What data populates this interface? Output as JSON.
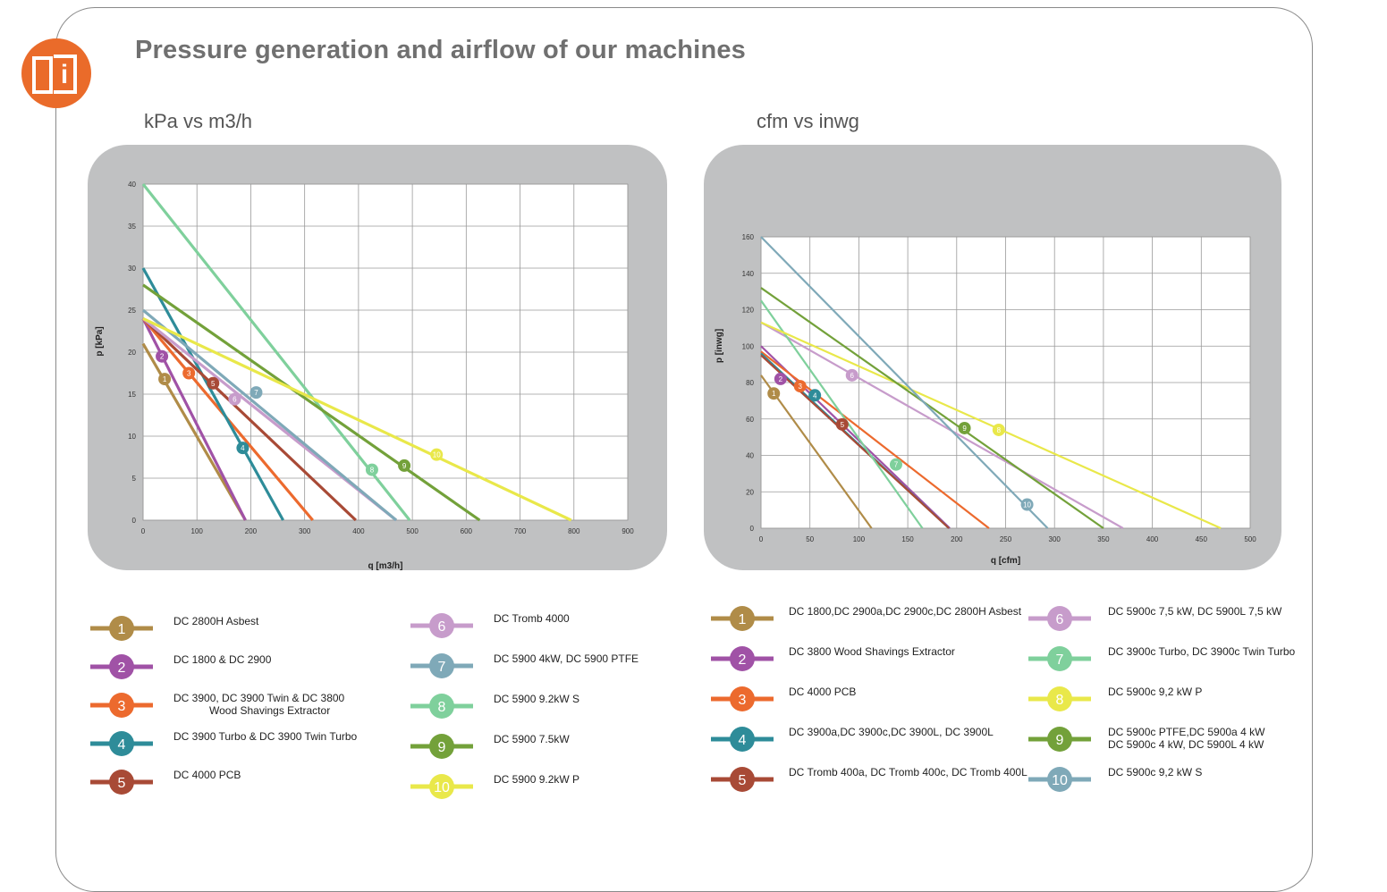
{
  "page": {
    "title": "Pressure generation and airflow of our machines",
    "icon": "manual-info-icon",
    "icon_color": "#ea6b2a"
  },
  "chart_data": [
    {
      "type": "line",
      "title": "kPa vs m3/h",
      "xlabel": "q [m3/h]",
      "ylabel": "p [kPa]",
      "xlim": [
        0,
        900
      ],
      "ylim": [
        0,
        40
      ],
      "xticks": [
        "0",
        "100",
        "200",
        "300",
        "400",
        "500",
        "600",
        "700",
        "800",
        "900"
      ],
      "yticks": [
        "0",
        "5",
        "10",
        "15",
        "20",
        "25",
        "30",
        "35",
        "40"
      ],
      "grid": true,
      "series": [
        {
          "id": "1",
          "color": "#b08c48",
          "points": [
            [
              0,
              21
            ],
            [
              190,
              0
            ]
          ],
          "marker": [
            40,
            16.8
          ]
        },
        {
          "id": "2",
          "color": "#a052a6",
          "points": [
            [
              0,
              24
            ],
            [
              190,
              0
            ]
          ],
          "marker": [
            35,
            19.5
          ]
        },
        {
          "id": "3",
          "color": "#ec6a2e",
          "points": [
            [
              0,
              24
            ],
            [
              315,
              0
            ]
          ],
          "marker": [
            85,
            17.5
          ]
        },
        {
          "id": "4",
          "color": "#2e8c99",
          "points": [
            [
              0,
              30
            ],
            [
              260,
              0
            ]
          ],
          "marker": [
            185,
            8.6
          ]
        },
        {
          "id": "5",
          "color": "#a84a36",
          "points": [
            [
              0,
              24
            ],
            [
              395,
              0
            ]
          ],
          "marker": [
            130,
            16.3
          ]
        },
        {
          "id": "6",
          "color": "#c79ccb",
          "points": [
            [
              0,
              24
            ],
            [
              470,
              0
            ]
          ],
          "marker": [
            170,
            14.4
          ]
        },
        {
          "id": "7",
          "color": "#7fa9b8",
          "points": [
            [
              0,
              25
            ],
            [
              470,
              0
            ]
          ],
          "marker": [
            210,
            15.2
          ]
        },
        {
          "id": "8",
          "color": "#7fd09c",
          "points": [
            [
              0,
              40
            ],
            [
              495,
              0
            ]
          ],
          "marker": [
            425,
            6
          ]
        },
        {
          "id": "9",
          "color": "#73a13a",
          "points": [
            [
              0,
              28
            ],
            [
              625,
              0
            ]
          ],
          "marker": [
            485,
            6.5
          ]
        },
        {
          "id": "10",
          "color": "#e9e84a",
          "points": [
            [
              0,
              24
            ],
            [
              795,
              0
            ]
          ],
          "marker": [
            545,
            7.8
          ]
        }
      ]
    },
    {
      "type": "line",
      "title": "cfm vs inwg",
      "xlabel": "q [cfm]",
      "ylabel": "p [inwg]",
      "xlim": [
        0,
        500
      ],
      "ylim": [
        0,
        160
      ],
      "xticks": [
        "0",
        "50",
        "100",
        "150",
        "200",
        "250",
        "300",
        "350",
        "400",
        "450",
        "500"
      ],
      "yticks": [
        "0",
        "20",
        "40",
        "60",
        "80",
        "100",
        "120",
        "140",
        "160"
      ],
      "grid": true,
      "series": [
        {
          "id": "1",
          "color": "#b08c48",
          "points": [
            [
              0,
              84
            ],
            [
              113,
              0
            ]
          ],
          "marker": [
            13,
            74
          ]
        },
        {
          "id": "2",
          "color": "#a052a6",
          "points": [
            [
              0,
              100
            ],
            [
              193,
              0
            ]
          ],
          "marker": [
            20,
            82
          ]
        },
        {
          "id": "3",
          "color": "#ec6a2e",
          "points": [
            [
              0,
              97
            ],
            [
              233,
              0
            ]
          ],
          "marker": [
            40,
            78
          ]
        },
        {
          "id": "4",
          "color": "#2e8c99",
          "points": [
            [
              0,
              96
            ],
            [
              192,
              0
            ]
          ],
          "marker": [
            55,
            73
          ]
        },
        {
          "id": "5",
          "color": "#a84a36",
          "points": [
            [
              0,
              95
            ],
            [
              192,
              0
            ]
          ],
          "marker": [
            83,
            57
          ]
        },
        {
          "id": "6",
          "color": "#c79ccb",
          "points": [
            [
              0,
              113
            ],
            [
              370,
              0
            ]
          ],
          "marker": [
            93,
            84
          ]
        },
        {
          "id": "7",
          "color": "#7fd09c",
          "points": [
            [
              0,
              125
            ],
            [
              165,
              0
            ]
          ],
          "marker": [
            138,
            35
          ]
        },
        {
          "id": "8",
          "color": "#e9e84a",
          "points": [
            [
              0,
              113
            ],
            [
              470,
              0
            ]
          ],
          "marker": [
            243,
            54
          ]
        },
        {
          "id": "9",
          "color": "#73a13a",
          "points": [
            [
              0,
              132
            ],
            [
              350,
              0
            ]
          ],
          "marker": [
            208,
            55
          ]
        },
        {
          "id": "10",
          "color": "#7fa9b8",
          "points": [
            [
              0,
              160
            ],
            [
              293,
              0
            ]
          ],
          "marker": [
            272,
            13
          ]
        }
      ]
    }
  ],
  "legends": {
    "left": [
      {
        "id": "1",
        "color": "#b08c48",
        "label": "DC 2800H Asbest"
      },
      {
        "id": "2",
        "color": "#a052a6",
        "label": "DC 1800 & DC 2900"
      },
      {
        "id": "3",
        "color": "#ec6a2e",
        "label": "DC 3900, DC 3900 Twin & DC 3800\n            Wood Shavings Extractor"
      },
      {
        "id": "4",
        "color": "#2e8c99",
        "label": "DC 3900 Turbo & DC 3900 Twin Turbo"
      },
      {
        "id": "5",
        "color": "#a84a36",
        "label": "DC 4000 PCB"
      },
      {
        "id": "6",
        "color": "#c79ccb",
        "label": "DC Tromb 4000"
      },
      {
        "id": "7",
        "color": "#7fa9b8",
        "label": "DC 5900 4kW, DC 5900 PTFE"
      },
      {
        "id": "8",
        "color": "#7fd09c",
        "label": "DC 5900 9.2kW S"
      },
      {
        "id": "9",
        "color": "#73a13a",
        "label": "DC 5900 7.5kW"
      },
      {
        "id": "10",
        "color": "#e9e84a",
        "label": "DC 5900 9.2kW P"
      }
    ],
    "right": [
      {
        "id": "1",
        "color": "#b08c48",
        "label": "DC 1800,DC 2900a,DC 2900c,DC 2800H Asbest"
      },
      {
        "id": "2",
        "color": "#a052a6",
        "label": "DC 3800 Wood Shavings Extractor"
      },
      {
        "id": "3",
        "color": "#ec6a2e",
        "label": "DC 4000 PCB"
      },
      {
        "id": "4",
        "color": "#2e8c99",
        "label": "DC 3900a,DC 3900c,DC 3900L, DC 3900L"
      },
      {
        "id": "5",
        "color": "#a84a36",
        "label": "DC Tromb 400a, DC Tromb 400c, DC Tromb 400L"
      },
      {
        "id": "6",
        "color": "#c79ccb",
        "label": "DC 5900c 7,5 kW, DC 5900L 7,5 kW"
      },
      {
        "id": "7",
        "color": "#7fd09c",
        "label": "DC 3900c Turbo, DC 3900c Twin Turbo"
      },
      {
        "id": "8",
        "color": "#e9e84a",
        "label": "DC 5900c 9,2 kW P"
      },
      {
        "id": "9",
        "color": "#73a13a",
        "label": "DC 5900c PTFE,DC 5900a 4 kW\nDC 5900c 4 kW, DC 5900L 4 kW"
      },
      {
        "id": "10",
        "color": "#7fa9b8",
        "label": "DC 5900c 9,2 kW S"
      }
    ]
  }
}
